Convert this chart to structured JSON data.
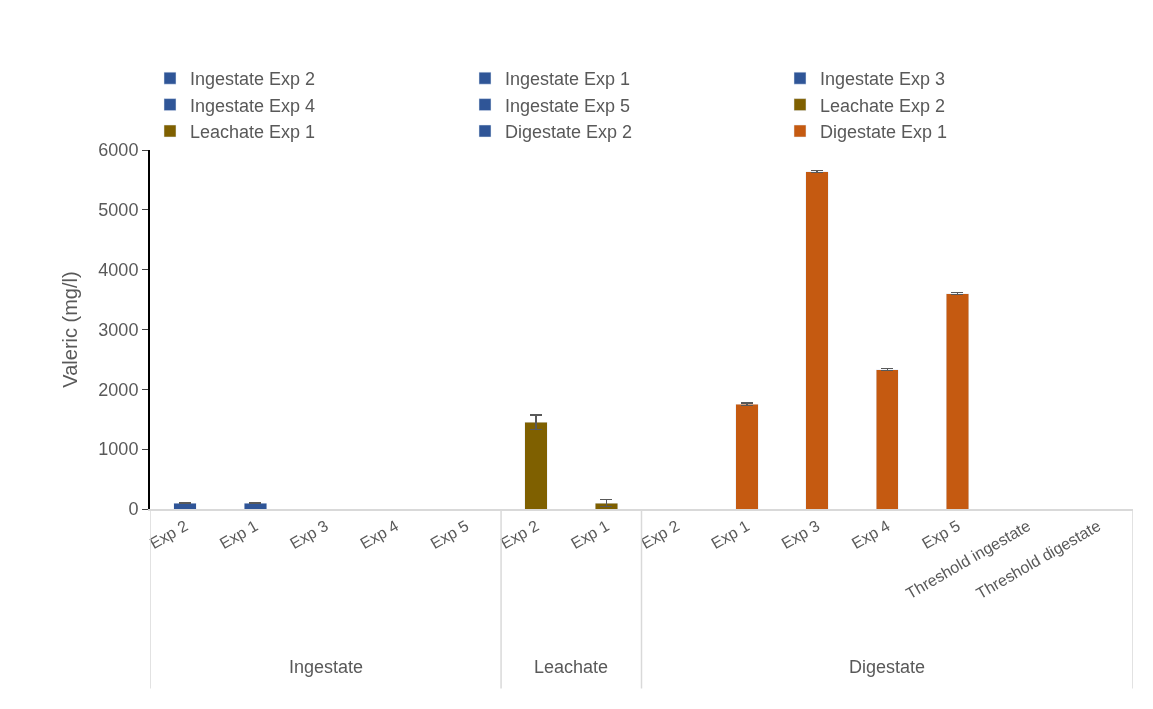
{
  "chart_data": {
    "type": "bar",
    "ylabel": "Valeric (mg/l)",
    "categories": [
      "Exp 2",
      "Exp 1",
      "Exp 3",
      "Exp 4",
      "Exp 5",
      "Exp 2",
      "Exp 1",
      "Exp 2",
      "Exp 1",
      "Exp 3",
      "Exp 4",
      "Exp 5",
      "Threshold ingestate",
      "Threshold digestate"
    ],
    "stacked": true,
    "series": [
      {
        "name": "Ingestate Exp 2",
        "color": "#2f5597",
        "values": [
          100,
          null,
          null,
          null,
          null,
          null,
          null,
          null,
          null,
          null,
          null,
          null,
          null,
          null
        ],
        "errors": [
          10,
          null,
          null,
          null,
          null,
          null,
          null,
          null,
          null,
          null,
          null,
          null,
          null,
          null
        ]
      },
      {
        "name": "Ingestate Exp 1",
        "color": "#2f5597",
        "values": [
          null,
          100,
          null,
          null,
          null,
          null,
          null,
          null,
          null,
          null,
          null,
          null,
          null,
          null
        ],
        "errors": [
          null,
          10,
          null,
          null,
          null,
          null,
          null,
          null,
          null,
          null,
          null,
          null,
          null,
          null
        ]
      },
      {
        "name": "Ingestate Exp 3",
        "color": "#2f5597",
        "values": [
          null,
          null,
          null,
          null,
          null,
          null,
          null,
          null,
          null,
          null,
          null,
          null,
          null,
          null
        ]
      },
      {
        "name": "Ingestate Exp 4",
        "color": "#2f5597",
        "values": [
          null,
          null,
          null,
          null,
          null,
          null,
          null,
          null,
          null,
          null,
          null,
          null,
          null,
          null
        ]
      },
      {
        "name": "Ingestate Exp 5",
        "color": "#2f5597",
        "values": [
          null,
          null,
          null,
          null,
          null,
          null,
          null,
          null,
          null,
          null,
          null,
          null,
          null,
          null
        ]
      },
      {
        "name": "Leachate Exp 2",
        "color": "#7f6000",
        "values": [
          null,
          null,
          null,
          null,
          null,
          1450,
          null,
          null,
          null,
          null,
          null,
          null,
          null,
          null
        ],
        "errors": [
          null,
          null,
          null,
          null,
          null,
          120,
          null,
          null,
          null,
          null,
          null,
          null,
          null,
          null
        ]
      },
      {
        "name": "Leachate Exp 1",
        "color": "#7f6000",
        "values": [
          null,
          null,
          null,
          null,
          null,
          null,
          100,
          null,
          null,
          null,
          null,
          null,
          null,
          null
        ],
        "errors": [
          null,
          null,
          null,
          null,
          null,
          null,
          60,
          null,
          null,
          null,
          null,
          null,
          null,
          null
        ]
      },
      {
        "name": "Digestate Exp 2",
        "color": "#2f5597",
        "values": [
          null,
          null,
          null,
          null,
          null,
          null,
          null,
          null,
          null,
          null,
          null,
          null,
          null,
          null
        ]
      },
      {
        "name": "Digestate Exp 1",
        "color": "#c55a11",
        "values": [
          null,
          null,
          null,
          null,
          null,
          null,
          null,
          null,
          1750,
          null,
          null,
          null,
          null,
          null
        ],
        "errors": [
          null,
          null,
          null,
          null,
          null,
          null,
          null,
          null,
          20,
          null,
          null,
          null,
          null,
          null
        ]
      },
      {
        "color": "#c55a11",
        "values": [
          null,
          null,
          null,
          null,
          null,
          null,
          null,
          null,
          null,
          5640,
          2330,
          3600,
          null,
          null
        ],
        "errors": [
          null,
          null,
          null,
          null,
          null,
          null,
          null,
          null,
          null,
          15,
          15,
          15,
          null,
          null
        ]
      }
    ],
    "annotations": [
      "Ingestate",
      "Leachate",
      "Digestate"
    ],
    "ylim": [
      0,
      6000
    ],
    "yticks": [
      0,
      1000,
      2000,
      3000,
      4000,
      5000,
      6000
    ],
    "legend": "top"
  }
}
